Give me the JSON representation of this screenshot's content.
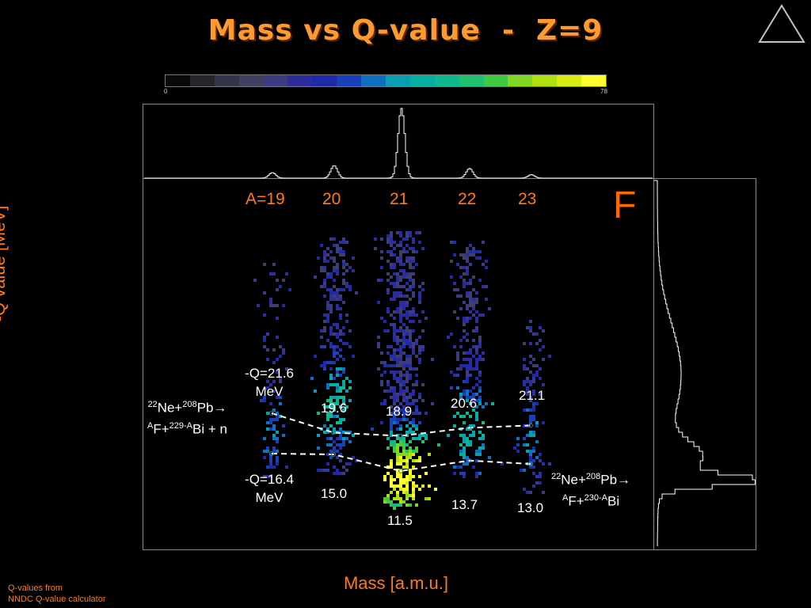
{
  "title": "Mass vs Q-value  -  Z=9",
  "colorbar": {
    "min_label": "0",
    "max_label": "78",
    "colors": [
      "#0a0a0a",
      "#25252e",
      "#35354a",
      "#404060",
      "#3c3c80",
      "#2c2c9a",
      "#1e2aa8",
      "#1840b8",
      "#1070c0",
      "#08a0b0",
      "#06b0a0",
      "#10b890",
      "#20c070",
      "#40c840",
      "#80d820",
      "#b0e010",
      "#d8ec10",
      "#ffff30"
    ]
  },
  "chart_data": {
    "type": "scatter",
    "title": "Mass vs Q-value  -  Z=9",
    "xlabel": "Mass [a.m.u.]",
    "ylabel": "-Q value [MeV]",
    "element": "F",
    "mass_labels": [
      "A=19",
      "20",
      "21",
      "22",
      "23"
    ],
    "series": [
      {
        "name": "22Ne+208Pb→AF+229-ABi + n",
        "mass": [
          19,
          20,
          21,
          22,
          23
        ],
        "q_values": [
          null,
          19.6,
          18.9,
          20.6,
          21.1
        ]
      },
      {
        "name": "22Ne+208Pb→AF+230-ABi",
        "mass": [
          19,
          20,
          21,
          22,
          23
        ],
        "q_values": [
          null,
          15.0,
          11.5,
          13.7,
          13.0
        ]
      }
    ],
    "q_labels": {
      "upper": [
        "19.6",
        "18.9",
        "20.6",
        "21.1"
      ],
      "lower": [
        "15.0",
        "11.5",
        "13.7",
        "13.0"
      ]
    },
    "annotations": {
      "upper_threshold": [
        "-Q=21.6",
        "MeV"
      ],
      "lower_threshold": [
        "-Q=16.4",
        "MeV"
      ]
    },
    "mass_projection_relative_heights": {
      "19": 0.08,
      "20": 0.18,
      "21": 1.0,
      "22": 0.14,
      "23": 0.05
    }
  },
  "reactions": {
    "upper": {
      "a1": "22",
      "t1": "Ne+",
      "a2": "208",
      "t2": "Pb→",
      "l2a": "A",
      "l2b": "F+",
      "l2c": "229-A",
      "l2d": "Bi + n"
    },
    "lower": {
      "a1": "22",
      "t1": "Ne+",
      "a2": "208",
      "t2": "Pb→",
      "l2a": "A",
      "l2b": "F+",
      "l2c": "230-A",
      "l2d": "Bi"
    }
  },
  "footnote": [
    "Q-values from",
    "NNDC Q-value calculator"
  ]
}
